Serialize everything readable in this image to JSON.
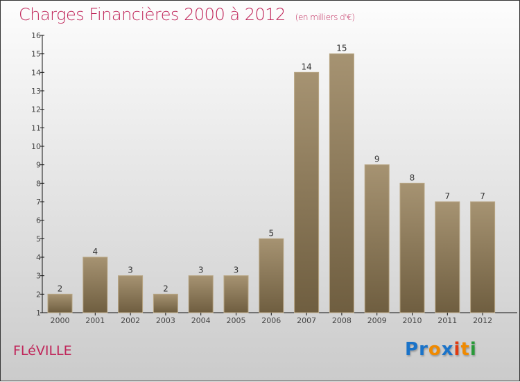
{
  "header": {
    "title": "Charges Financières 2000 à 2012",
    "unit": "(en milliers d'€)"
  },
  "footer": {
    "city": "FLéVILLE",
    "logo": [
      "P",
      "r",
      "o",
      "x",
      "i",
      "t",
      "i"
    ],
    "logo_colors": [
      "#1a73c9",
      "#1a73c9",
      "#f08a00",
      "#1a73c9",
      "#e03a10",
      "#f08a00",
      "#2a9a3a"
    ]
  },
  "chart_data": {
    "type": "bar",
    "title": "Charges Financières 2000 à 2012",
    "ylabel": "(en milliers d'€)",
    "xlabel": "",
    "categories": [
      "2000",
      "2001",
      "2002",
      "2003",
      "2004",
      "2005",
      "2006",
      "2007",
      "2008",
      "2009",
      "2010",
      "2011",
      "2012"
    ],
    "values": [
      2,
      4,
      3,
      2,
      3,
      3,
      5,
      14,
      15,
      9,
      8,
      7,
      7
    ],
    "ylim": [
      1,
      16
    ],
    "yticks": [
      1,
      2,
      3,
      4,
      5,
      6,
      7,
      8,
      9,
      10,
      11,
      12,
      13,
      14,
      15,
      16
    ],
    "bar_color": "#8a7656"
  }
}
